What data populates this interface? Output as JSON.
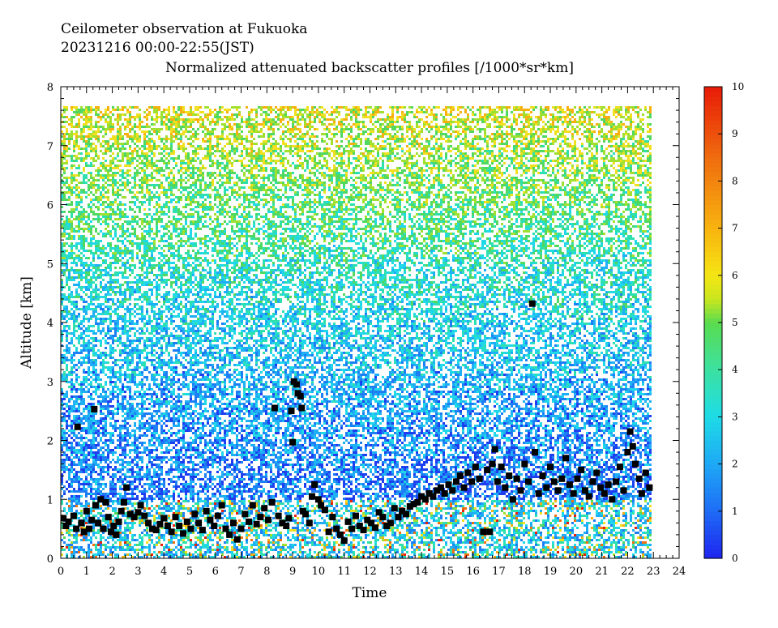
{
  "chart_data": {
    "type": "heatmap",
    "title_lines": [
      "Ceilometer observation at Fukuoka",
      "20231216  00:00-22:55(JST)"
    ],
    "subtitle": "Normalized attenuated backscatter profiles [/1000*sr*km]",
    "xlabel": "Time",
    "ylabel": "Altitude [km]",
    "xlim": [
      0,
      24
    ],
    "ylim": [
      0,
      8
    ],
    "data_extent": {
      "time_end": 22.92,
      "altitude_top": 7.67
    },
    "x_ticks": [
      "0",
      "1",
      "2",
      "3",
      "4",
      "5",
      "6",
      "7",
      "8",
      "9",
      "10",
      "11",
      "12",
      "13",
      "14",
      "15",
      "16",
      "17",
      "18",
      "19",
      "20",
      "21",
      "22",
      "23",
      "24"
    ],
    "y_ticks": [
      "0",
      "1",
      "2",
      "3",
      "4",
      "5",
      "6",
      "7",
      "8"
    ],
    "colorbar": {
      "range": [
        0,
        10
      ],
      "ticks": [
        "0",
        "1",
        "2",
        "3",
        "4",
        "5",
        "6",
        "7",
        "8",
        "9",
        "10"
      ],
      "colors": [
        "#1e3ff0",
        "#1e7ff5",
        "#1eaff5",
        "#20d8e8",
        "#2ee0b0",
        "#50d860",
        "#a0e030",
        "#f0e020",
        "#f8b010",
        "#f07010",
        "#e82008"
      ]
    },
    "backscatter_field_description_levels": {
      "below_1km": "high (boundary layer, mixed)",
      "1_to_3km": "about 1-2",
      "3_to_5km": "about 2-4",
      "above_5km": "noisy 4-10"
    },
    "cloud_base_series": {
      "name": "cloud base",
      "points": [
        [
          0.1,
          0.68
        ],
        [
          0.2,
          0.55
        ],
        [
          0.3,
          0.62
        ],
        [
          0.5,
          0.72
        ],
        [
          0.6,
          0.5
        ],
        [
          0.65,
          2.23
        ],
        [
          0.8,
          0.6
        ],
        [
          0.9,
          0.45
        ],
        [
          1.0,
          0.8
        ],
        [
          1.1,
          0.5
        ],
        [
          1.2,
          0.65
        ],
        [
          1.3,
          2.53
        ],
        [
          1.35,
          0.9
        ],
        [
          1.45,
          0.6
        ],
        [
          1.55,
          1.0
        ],
        [
          1.65,
          0.5
        ],
        [
          1.75,
          0.95
        ],
        [
          1.85,
          0.7
        ],
        [
          1.95,
          0.45
        ],
        [
          2.05,
          0.55
        ],
        [
          2.15,
          0.4
        ],
        [
          2.25,
          0.62
        ],
        [
          2.35,
          0.8
        ],
        [
          2.45,
          0.95
        ],
        [
          2.55,
          1.2
        ],
        [
          2.7,
          0.75
        ],
        [
          2.85,
          0.7
        ],
        [
          3.0,
          0.78
        ],
        [
          3.1,
          0.9
        ],
        [
          3.25,
          0.72
        ],
        [
          3.4,
          0.6
        ],
        [
          3.55,
          0.5
        ],
        [
          3.7,
          0.48
        ],
        [
          3.85,
          0.58
        ],
        [
          4.0,
          0.68
        ],
        [
          4.15,
          0.55
        ],
        [
          4.3,
          0.45
        ],
        [
          4.45,
          0.7
        ],
        [
          4.6,
          0.55
        ],
        [
          4.75,
          0.42
        ],
        [
          4.9,
          0.62
        ],
        [
          5.05,
          0.5
        ],
        [
          5.2,
          0.75
        ],
        [
          5.35,
          0.6
        ],
        [
          5.5,
          0.48
        ],
        [
          5.65,
          0.8
        ],
        [
          5.8,
          0.65
        ],
        [
          5.95,
          0.55
        ],
        [
          6.1,
          0.72
        ],
        [
          6.25,
          0.9
        ],
        [
          6.4,
          0.5
        ],
        [
          6.55,
          0.4
        ],
        [
          6.7,
          0.6
        ],
        [
          6.85,
          0.32
        ],
        [
          7.0,
          0.5
        ],
        [
          7.15,
          0.75
        ],
        [
          7.3,
          0.62
        ],
        [
          7.45,
          0.9
        ],
        [
          7.6,
          0.58
        ],
        [
          7.75,
          0.7
        ],
        [
          7.9,
          0.85
        ],
        [
          8.05,
          0.65
        ],
        [
          8.2,
          0.95
        ],
        [
          8.3,
          2.55
        ],
        [
          8.45,
          0.72
        ],
        [
          8.6,
          0.6
        ],
        [
          8.75,
          0.55
        ],
        [
          8.85,
          0.68
        ],
        [
          8.95,
          2.5
        ],
        [
          9.0,
          1.97
        ],
        [
          9.05,
          3.0
        ],
        [
          9.15,
          2.95
        ],
        [
          9.2,
          2.8
        ],
        [
          9.3,
          2.75
        ],
        [
          9.35,
          2.55
        ],
        [
          9.4,
          0.8
        ],
        [
          9.5,
          0.75
        ],
        [
          9.65,
          0.6
        ],
        [
          9.75,
          1.05
        ],
        [
          9.85,
          1.25
        ],
        [
          10.0,
          1.0
        ],
        [
          10.1,
          0.9
        ],
        [
          10.25,
          0.82
        ],
        [
          10.4,
          0.45
        ],
        [
          10.55,
          0.7
        ],
        [
          10.7,
          0.5
        ],
        [
          10.85,
          0.4
        ],
        [
          11.0,
          0.3
        ],
        [
          11.15,
          0.62
        ],
        [
          11.3,
          0.5
        ],
        [
          11.45,
          0.72
        ],
        [
          11.6,
          0.55
        ],
        [
          11.75,
          0.48
        ],
        [
          11.9,
          0.65
        ],
        [
          12.05,
          0.6
        ],
        [
          12.2,
          0.52
        ],
        [
          12.35,
          0.78
        ],
        [
          12.5,
          0.7
        ],
        [
          12.65,
          0.55
        ],
        [
          12.8,
          0.6
        ],
        [
          12.95,
          0.85
        ],
        [
          13.1,
          0.7
        ],
        [
          13.25,
          0.8
        ],
        [
          13.4,
          0.75
        ],
        [
          13.55,
          0.88
        ],
        [
          13.7,
          0.92
        ],
        [
          13.85,
          0.95
        ],
        [
          14.0,
          1.05
        ],
        [
          14.15,
          1.0
        ],
        [
          14.3,
          1.1
        ],
        [
          14.45,
          1.05
        ],
        [
          14.6,
          1.15
        ],
        [
          14.75,
          1.2
        ],
        [
          14.9,
          1.1
        ],
        [
          15.05,
          1.25
        ],
        [
          15.2,
          1.15
        ],
        [
          15.35,
          1.3
        ],
        [
          15.5,
          1.4
        ],
        [
          15.65,
          1.2
        ],
        [
          15.8,
          1.45
        ],
        [
          15.95,
          1.3
        ],
        [
          16.1,
          1.55
        ],
        [
          16.25,
          1.35
        ],
        [
          16.4,
          0.45
        ],
        [
          16.55,
          1.5
        ],
        [
          16.65,
          0.45
        ],
        [
          16.75,
          1.6
        ],
        [
          16.85,
          1.85
        ],
        [
          16.95,
          1.3
        ],
        [
          17.1,
          1.55
        ],
        [
          17.25,
          1.2
        ],
        [
          17.4,
          1.4
        ],
        [
          17.55,
          1.0
        ],
        [
          17.7,
          1.35
        ],
        [
          17.85,
          1.15
        ],
        [
          18.0,
          1.6
        ],
        [
          18.15,
          1.3
        ],
        [
          18.3,
          4.32
        ],
        [
          18.4,
          1.8
        ],
        [
          18.55,
          1.1
        ],
        [
          18.7,
          1.4
        ],
        [
          18.85,
          1.2
        ],
        [
          19.0,
          1.55
        ],
        [
          19.15,
          1.3
        ],
        [
          19.3,
          1.15
        ],
        [
          19.45,
          1.35
        ],
        [
          19.6,
          1.7
        ],
        [
          19.75,
          1.25
        ],
        [
          19.9,
          1.1
        ],
        [
          20.05,
          1.35
        ],
        [
          20.2,
          1.5
        ],
        [
          20.35,
          1.15
        ],
        [
          20.5,
          1.05
        ],
        [
          20.65,
          1.3
        ],
        [
          20.8,
          1.45
        ],
        [
          20.95,
          1.2
        ],
        [
          21.1,
          1.1
        ],
        [
          21.25,
          1.25
        ],
        [
          21.4,
          1.0
        ],
        [
          21.55,
          1.3
        ],
        [
          21.7,
          1.55
        ],
        [
          21.85,
          1.15
        ],
        [
          22.0,
          1.8
        ],
        [
          22.1,
          2.15
        ],
        [
          22.2,
          1.9
        ],
        [
          22.3,
          1.6
        ],
        [
          22.45,
          1.35
        ],
        [
          22.55,
          1.1
        ],
        [
          22.7,
          1.45
        ],
        [
          22.85,
          1.2
        ]
      ]
    }
  }
}
